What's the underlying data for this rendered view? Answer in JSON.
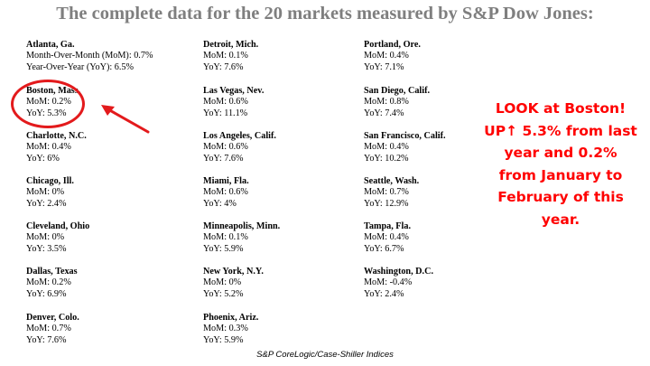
{
  "title": "The complete data for the 20 markets measured by S&P Dow Jones:",
  "markets": [
    {
      "name": "Atlanta, Ga.",
      "mom": "Month-Over-Month (MoM): 0.7%",
      "yoy": "Year-Over-Year (YoY): 6.5%"
    },
    {
      "name": "Boston, Mass.",
      "mom": "MoM: 0.2%",
      "yoy": "YoY: 5.3%"
    },
    {
      "name": "Charlotte, N.C.",
      "mom": "MoM: 0.4%",
      "yoy": "YoY: 6%"
    },
    {
      "name": "Chicago, Ill.",
      "mom": "MoM: 0%",
      "yoy": "YoY: 2.4%"
    },
    {
      "name": "Cleveland, Ohio",
      "mom": "MoM: 0%",
      "yoy": "YoY: 3.5%"
    },
    {
      "name": "Dallas, Texas",
      "mom": "MoM: 0.2%",
      "yoy": "YoY: 6.9%"
    },
    {
      "name": "Denver, Colo.",
      "mom": "MoM: 0.7%",
      "yoy": "YoY: 7.6%"
    },
    {
      "name": "Detroit, Mich.",
      "mom": "MoM: 0.1%",
      "yoy": "YoY: 7.6%"
    },
    {
      "name": "Las Vegas, Nev.",
      "mom": "MoM: 0.6%",
      "yoy": "YoY: 11.1%"
    },
    {
      "name": "Los Angeles, Calif.",
      "mom": "MoM: 0.6%",
      "yoy": "YoY: 7.6%"
    },
    {
      "name": "Miami, Fla.",
      "mom": "MoM: 0.6%",
      "yoy": "YoY: 4%"
    },
    {
      "name": "Minneapolis, Minn.",
      "mom": "MoM: 0.1%",
      "yoy": "YoY: 5.9%"
    },
    {
      "name": "New York, N.Y.",
      "mom": "MoM: 0%",
      "yoy": "YoY: 5.2%"
    },
    {
      "name": "Phoenix, Ariz.",
      "mom": "MoM: 0.3%",
      "yoy": "YoY: 5.9%"
    },
    {
      "name": "Portland, Ore.",
      "mom": "MoM: 0.4%",
      "yoy": "YoY: 7.1%"
    },
    {
      "name": "San Diego, Calif.",
      "mom": "MoM: 0.8%",
      "yoy": "YoY: 7.4%"
    },
    {
      "name": "San Francisco, Calif.",
      "mom": "MoM: 0.4%",
      "yoy": "YoY: 10.2%"
    },
    {
      "name": "Seattle, Wash.",
      "mom": "MoM: 0.7%",
      "yoy": "YoY: 12.9%"
    },
    {
      "name": "Tampa, Fla.",
      "mom": "MoM: 0.4%",
      "yoy": "YoY: 6.7%"
    },
    {
      "name": "Washington, D.C.",
      "mom": "MoM: -0.4%",
      "yoy": "YoY: 2.4%"
    }
  ],
  "callout": {
    "lines": [
      "LOOK at Boston!",
      "UP↑ 5.3% from last",
      "year and 0.2%",
      "from January to",
      "February of this",
      "year."
    ],
    "color": "#ff0000"
  },
  "highlight_color": "#e31a1c",
  "footer": "S&P CoreLogic/Case-Shiller Indices"
}
